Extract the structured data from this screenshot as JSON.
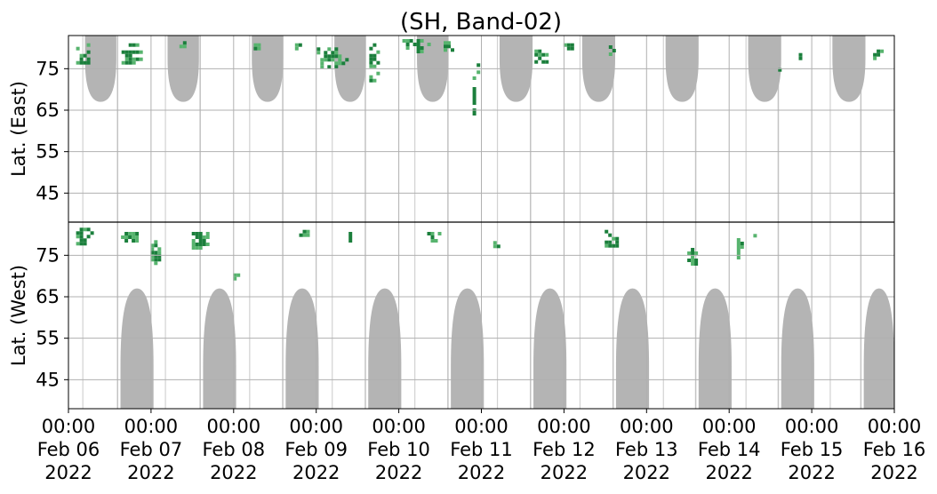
{
  "chart_data": {
    "type": "heatmap",
    "title": "(SH, Band-02)",
    "ylabel_east": "Lat. (East)",
    "ylabel_west": "Lat. (West)",
    "east_ticks": [
      45,
      55,
      65,
      75
    ],
    "west_ticks": [
      75,
      65,
      55,
      45
    ],
    "lat_range": [
      38,
      83
    ],
    "x_range_days": [
      0,
      10
    ],
    "x_ticks": [
      {
        "day": 0,
        "l1": "00:00",
        "l2": "Feb 06",
        "l3": "2022"
      },
      {
        "day": 1,
        "l1": "00:00",
        "l2": "Feb 07",
        "l3": "2022"
      },
      {
        "day": 2,
        "l1": "00:00",
        "l2": "Feb 08",
        "l3": "2022"
      },
      {
        "day": 3,
        "l1": "00:00",
        "l2": "Feb 09",
        "l3": "2022"
      },
      {
        "day": 4,
        "l1": "00:00",
        "l2": "Feb 10",
        "l3": "2022"
      },
      {
        "day": 5,
        "l1": "00:00",
        "l2": "Feb 11",
        "l3": "2022"
      },
      {
        "day": 6,
        "l1": "00:00",
        "l2": "Feb 12",
        "l3": "2022"
      },
      {
        "day": 7,
        "l1": "00:00",
        "l2": "Feb 13",
        "l3": "2022"
      },
      {
        "day": 8,
        "l1": "00:00",
        "l2": "Feb 14",
        "l3": "2022"
      },
      {
        "day": 9,
        "l1": "00:00",
        "l2": "Feb 15",
        "l3": "2022"
      },
      {
        "day": 10,
        "l1": "00:00",
        "l2": "Feb 16",
        "l3": "2022"
      }
    ],
    "grid": true,
    "colors": {
      "no_data": "#b4b4b4",
      "activity_low": "#57b46e",
      "activity_high": "#1b7f3c",
      "grid": "#b0b0b0",
      "divider": "#000000"
    },
    "east_no_data_regions": [
      {
        "start": 0.2,
        "end": 0.58,
        "min_lat": 67
      },
      {
        "start": 1.2,
        "end": 1.58,
        "min_lat": 67
      },
      {
        "start": 2.22,
        "end": 2.6,
        "min_lat": 67
      },
      {
        "start": 3.22,
        "end": 3.6,
        "min_lat": 67
      },
      {
        "start": 4.22,
        "end": 4.6,
        "min_lat": 67
      },
      {
        "start": 5.22,
        "end": 5.62,
        "min_lat": 67
      },
      {
        "start": 6.22,
        "end": 6.62,
        "min_lat": 67
      },
      {
        "start": 7.23,
        "end": 7.63,
        "min_lat": 67
      },
      {
        "start": 8.23,
        "end": 8.63,
        "min_lat": 67
      },
      {
        "start": 9.25,
        "end": 9.65,
        "min_lat": 67
      }
    ],
    "west_no_data_regions": [
      {
        "start": 0.63,
        "end": 1.03,
        "min_lat": 67
      },
      {
        "start": 1.63,
        "end": 2.03,
        "min_lat": 67
      },
      {
        "start": 2.63,
        "end": 3.03,
        "min_lat": 67
      },
      {
        "start": 3.63,
        "end": 4.03,
        "min_lat": 67
      },
      {
        "start": 4.63,
        "end": 5.03,
        "min_lat": 67
      },
      {
        "start": 5.63,
        "end": 6.03,
        "min_lat": 67
      },
      {
        "start": 6.63,
        "end": 7.03,
        "min_lat": 67
      },
      {
        "start": 7.63,
        "end": 8.03,
        "min_lat": 67
      },
      {
        "start": 8.63,
        "end": 9.03,
        "min_lat": 67
      },
      {
        "start": 9.63,
        "end": 10.0,
        "min_lat": 67
      }
    ],
    "activity_clusters": [
      {
        "side": "east",
        "day": 0.05,
        "lat": 79,
        "width": 0.22,
        "height": 6,
        "intensity": 0.8
      },
      {
        "side": "east",
        "day": 0.6,
        "lat": 79,
        "width": 0.28,
        "height": 6,
        "intensity": 0.8
      },
      {
        "side": "east",
        "day": 1.3,
        "lat": 81,
        "width": 0.15,
        "height": 3,
        "intensity": 0.4
      },
      {
        "side": "east",
        "day": 2.2,
        "lat": 81,
        "width": 0.12,
        "height": 2,
        "intensity": 0.4
      },
      {
        "side": "east",
        "day": 2.7,
        "lat": 81,
        "width": 0.15,
        "height": 2,
        "intensity": 0.4
      },
      {
        "side": "east",
        "day": 2.92,
        "lat": 78,
        "width": 0.45,
        "height": 6,
        "intensity": 0.5
      },
      {
        "side": "east",
        "day": 3.6,
        "lat": 77,
        "width": 0.15,
        "height": 10,
        "intensity": 0.8
      },
      {
        "side": "east",
        "day": 4.0,
        "lat": 81,
        "width": 0.35,
        "height": 4,
        "intensity": 0.9
      },
      {
        "side": "east",
        "day": 4.5,
        "lat": 81,
        "width": 0.2,
        "height": 3,
        "intensity": 0.5
      },
      {
        "side": "east",
        "day": 4.85,
        "lat": 69,
        "width": 0.1,
        "height": 10,
        "intensity": 0.8
      },
      {
        "side": "east",
        "day": 4.9,
        "lat": 76,
        "width": 0.06,
        "height": 4,
        "intensity": 0.8
      },
      {
        "side": "east",
        "day": 5.6,
        "lat": 78,
        "width": 0.18,
        "height": 5,
        "intensity": 0.9
      },
      {
        "side": "east",
        "day": 5.95,
        "lat": 81,
        "width": 0.2,
        "height": 2,
        "intensity": 0.5
      },
      {
        "side": "east",
        "day": 6.5,
        "lat": 80,
        "width": 0.1,
        "height": 3,
        "intensity": 0.6
      },
      {
        "side": "east",
        "day": 8.55,
        "lat": 75,
        "width": 0.06,
        "height": 2,
        "intensity": 0.4
      },
      {
        "side": "east",
        "day": 8.8,
        "lat": 79,
        "width": 0.08,
        "height": 3,
        "intensity": 0.4
      },
      {
        "side": "east",
        "day": 9.7,
        "lat": 79,
        "width": 0.15,
        "height": 3,
        "intensity": 0.6
      },
      {
        "side": "west",
        "day": 0.05,
        "lat": 80,
        "width": 0.25,
        "height": 5,
        "intensity": 0.8
      },
      {
        "side": "west",
        "day": 0.55,
        "lat": 80,
        "width": 0.35,
        "height": 3,
        "intensity": 0.7
      },
      {
        "side": "west",
        "day": 0.95,
        "lat": 76,
        "width": 0.15,
        "height": 7,
        "intensity": 0.6
      },
      {
        "side": "west",
        "day": 1.45,
        "lat": 79,
        "width": 0.25,
        "height": 5,
        "intensity": 0.9
      },
      {
        "side": "west",
        "day": 1.95,
        "lat": 70,
        "width": 0.1,
        "height": 3,
        "intensity": 0.7
      },
      {
        "side": "west",
        "day": 2.75,
        "lat": 81,
        "width": 0.2,
        "height": 2,
        "intensity": 0.4
      },
      {
        "side": "west",
        "day": 3.35,
        "lat": 80,
        "width": 0.1,
        "height": 3,
        "intensity": 0.5
      },
      {
        "side": "west",
        "day": 4.3,
        "lat": 80,
        "width": 0.2,
        "height": 3,
        "intensity": 0.6
      },
      {
        "side": "west",
        "day": 5.1,
        "lat": 79,
        "width": 0.12,
        "height": 4,
        "intensity": 0.8
      },
      {
        "side": "west",
        "day": 5.6,
        "lat": 81,
        "width": 0.12,
        "height": 2,
        "intensity": 0.5
      },
      {
        "side": "west",
        "day": 6.45,
        "lat": 79,
        "width": 0.2,
        "height": 6,
        "intensity": 0.8
      },
      {
        "side": "west",
        "day": 7.45,
        "lat": 75,
        "width": 0.15,
        "height": 7,
        "intensity": 0.8
      },
      {
        "side": "west",
        "day": 8.05,
        "lat": 77,
        "width": 0.1,
        "height": 6,
        "intensity": 0.6
      },
      {
        "side": "west",
        "day": 8.25,
        "lat": 80,
        "width": 0.1,
        "height": 2,
        "intensity": 0.3
      }
    ]
  }
}
